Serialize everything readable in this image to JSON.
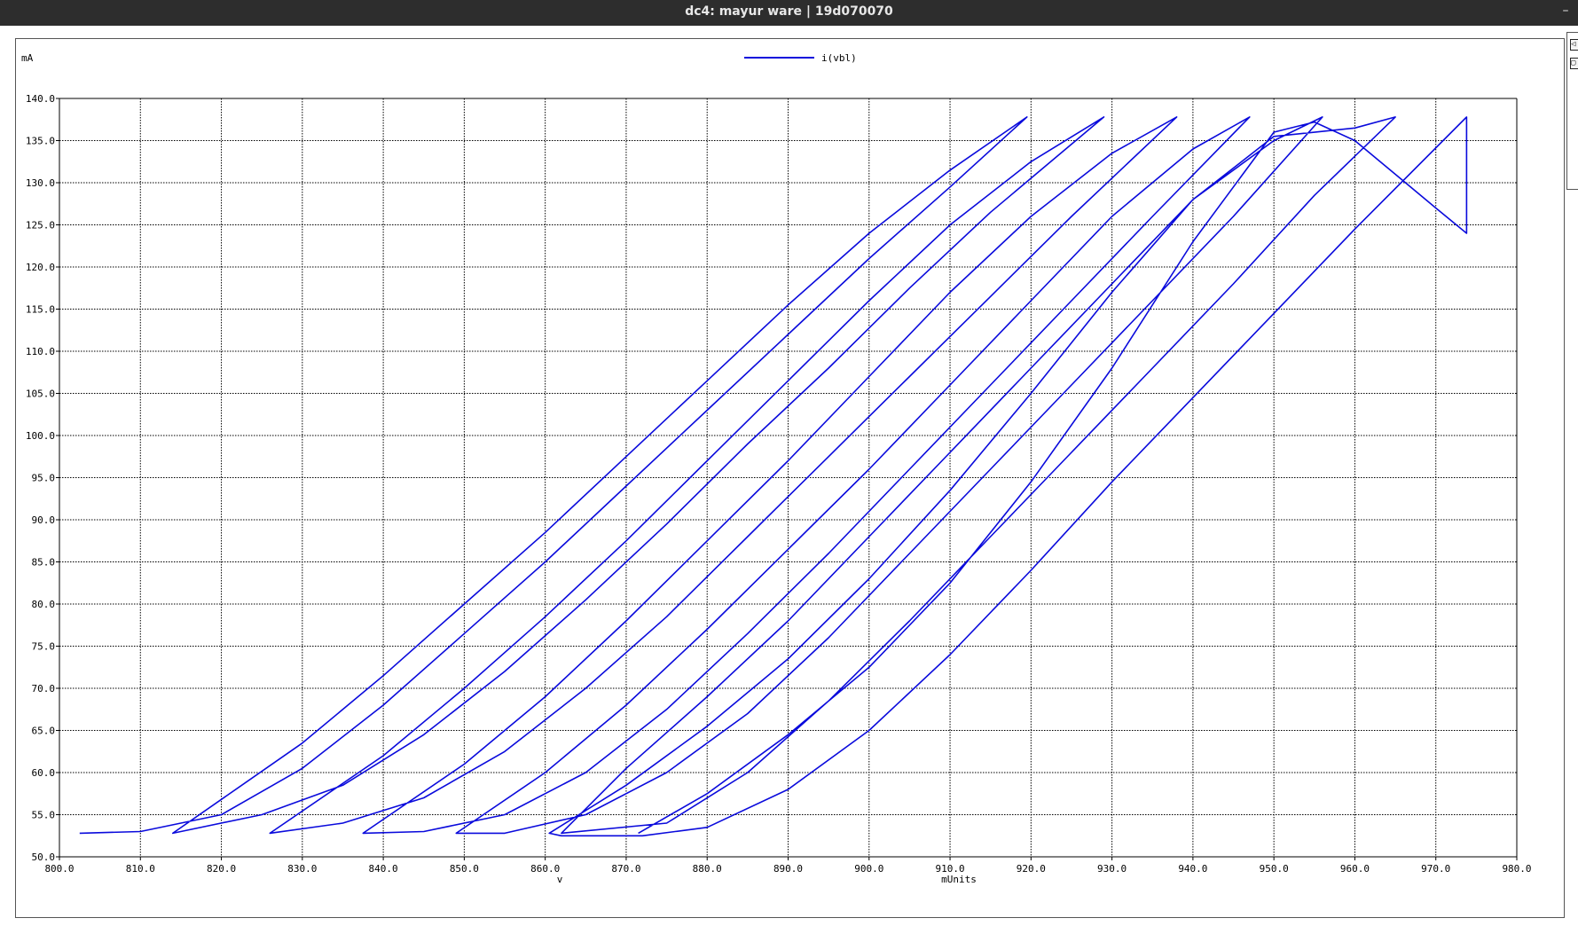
{
  "window": {
    "title": "dc4: mayur ware | 19d070070",
    "minimize_glyph": "–"
  },
  "side_buttons": [
    {
      "name": "zoom-in-button",
      "glyph": "◁"
    },
    {
      "name": "zoom-box-button",
      "glyph": "▢"
    }
  ],
  "colors": {
    "titlebar": "#2d2d2d",
    "trace": "#0a0adc",
    "grid": "#000000",
    "background": "#ffffff"
  },
  "chart_data": {
    "type": "line",
    "y_unit": "mA",
    "xlabel": "v",
    "xunit": "mUnits",
    "xlim": [
      800.0,
      980.0
    ],
    "ylim": [
      50.0,
      140.0
    ],
    "xticks": [
      "800.0",
      "810.0",
      "820.0",
      "830.0",
      "840.0",
      "850.0",
      "860.0",
      "870.0",
      "880.0",
      "890.0",
      "900.0",
      "910.0",
      "920.0",
      "930.0",
      "940.0",
      "950.0",
      "960.0",
      "970.0",
      "980.0"
    ],
    "yticks": [
      "50.0",
      "55.0",
      "60.0",
      "65.0",
      "70.0",
      "75.0",
      "80.0",
      "85.0",
      "90.0",
      "95.0",
      "100.0",
      "105.0",
      "110.0",
      "115.0",
      "120.0",
      "125.0",
      "130.0",
      "135.0",
      "140.0"
    ],
    "grid": true,
    "legend_position": "top-center",
    "series": [
      {
        "name": "i(vbl)",
        "points": [
          [
            871.5,
            52.8
          ],
          [
            880,
            57.5
          ],
          [
            890,
            64.5
          ],
          [
            900,
            72.5
          ],
          [
            910,
            82.5
          ],
          [
            920,
            94.5
          ],
          [
            930,
            108
          ],
          [
            940,
            123
          ],
          [
            950,
            136
          ],
          [
            955,
            137.2
          ],
          [
            960,
            135
          ],
          [
            965,
            131
          ],
          [
            970,
            127
          ],
          [
            973.8,
            124
          ],
          [
            973.8,
            137.8
          ],
          [
            960,
            124.5
          ],
          [
            950,
            114.5
          ],
          [
            940,
            104.5
          ],
          [
            930,
            94.5
          ],
          [
            920,
            84
          ],
          [
            910,
            74
          ],
          [
            900,
            65
          ],
          [
            890,
            58
          ],
          [
            880,
            53.5
          ],
          [
            872,
            52.5
          ],
          [
            862,
            52.5
          ],
          [
            860.5,
            52.8
          ],
          [
            870,
            58.5
          ],
          [
            880,
            65.5
          ],
          [
            890,
            73.5
          ],
          [
            900,
            83
          ],
          [
            910,
            93.5
          ],
          [
            920,
            105
          ],
          [
            930,
            117
          ],
          [
            940,
            128
          ],
          [
            950,
            135.5
          ],
          [
            960,
            136.5
          ],
          [
            965,
            137.8
          ],
          [
            955,
            128.5
          ],
          [
            945,
            118
          ],
          [
            935,
            108
          ],
          [
            925,
            98
          ],
          [
            915,
            88
          ],
          [
            905,
            78
          ],
          [
            895,
            68.5
          ],
          [
            885,
            60
          ],
          [
            875,
            54
          ],
          [
            862,
            52.8
          ],
          [
            870,
            60.5
          ],
          [
            880,
            69
          ],
          [
            890,
            78
          ],
          [
            900,
            88
          ],
          [
            910,
            98
          ],
          [
            920,
            108
          ],
          [
            930,
            118
          ],
          [
            940,
            128
          ],
          [
            950,
            135
          ],
          [
            956,
            137.8
          ],
          [
            945,
            126
          ],
          [
            935,
            116
          ],
          [
            925,
            106
          ],
          [
            915,
            96
          ],
          [
            905,
            86
          ],
          [
            895,
            76
          ],
          [
            885,
            67
          ],
          [
            875,
            60
          ],
          [
            865,
            55
          ],
          [
            855,
            52.8
          ],
          [
            849,
            52.8
          ],
          [
            860,
            60
          ],
          [
            870,
            68
          ],
          [
            880,
            77
          ],
          [
            890,
            86.5
          ],
          [
            900,
            96
          ],
          [
            910,
            106
          ],
          [
            920,
            116
          ],
          [
            930,
            126
          ],
          [
            940,
            134
          ],
          [
            947,
            137.8
          ],
          [
            935,
            126
          ],
          [
            925,
            116
          ],
          [
            915,
            106
          ],
          [
            905,
            96
          ],
          [
            895,
            86
          ],
          [
            885,
            76.5
          ],
          [
            875,
            67.5
          ],
          [
            865,
            60
          ],
          [
            855,
            55
          ],
          [
            845,
            53
          ],
          [
            837.5,
            52.8
          ],
          [
            850,
            61
          ],
          [
            860,
            69
          ],
          [
            870,
            78
          ],
          [
            880,
            87.5
          ],
          [
            890,
            97
          ],
          [
            900,
            107
          ],
          [
            910,
            117
          ],
          [
            920,
            126
          ],
          [
            930,
            133.5
          ],
          [
            938,
            137.8
          ],
          [
            925,
            126
          ],
          [
            915,
            116.5
          ],
          [
            905,
            107
          ],
          [
            895,
            97.5
          ],
          [
            885,
            88
          ],
          [
            875,
            78.5
          ],
          [
            865,
            70
          ],
          [
            855,
            62.5
          ],
          [
            845,
            57
          ],
          [
            835,
            54
          ],
          [
            826,
            52.8
          ],
          [
            840,
            62
          ],
          [
            850,
            70
          ],
          [
            860,
            78.5
          ],
          [
            870,
            87.5
          ],
          [
            880,
            97
          ],
          [
            890,
            106.5
          ],
          [
            900,
            116
          ],
          [
            910,
            125
          ],
          [
            920,
            132.5
          ],
          [
            929,
            137.8
          ],
          [
            915,
            126.5
          ],
          [
            905,
            117.5
          ],
          [
            895,
            108
          ],
          [
            885,
            99
          ],
          [
            875,
            89.5
          ],
          [
            865,
            80.5
          ],
          [
            855,
            72
          ],
          [
            845,
            64.5
          ],
          [
            835,
            58.5
          ],
          [
            825,
            55
          ],
          [
            815,
            53
          ],
          [
            814,
            52.8
          ],
          [
            830,
            63.5
          ],
          [
            840,
            71.5
          ],
          [
            850,
            80
          ],
          [
            860,
            88.5
          ],
          [
            870,
            97.5
          ],
          [
            880,
            106.5
          ],
          [
            890,
            115.5
          ],
          [
            900,
            124
          ],
          [
            910,
            131.5
          ],
          [
            919.5,
            137.8
          ],
          [
            910,
            129.5
          ],
          [
            900,
            121
          ],
          [
            890,
            112
          ],
          [
            880,
            103
          ],
          [
            870,
            94
          ],
          [
            860,
            85
          ],
          [
            850,
            76.5
          ],
          [
            840,
            68
          ],
          [
            830,
            60.5
          ],
          [
            820,
            55
          ],
          [
            810,
            53
          ],
          [
            802.5,
            52.8
          ]
        ]
      }
    ]
  }
}
